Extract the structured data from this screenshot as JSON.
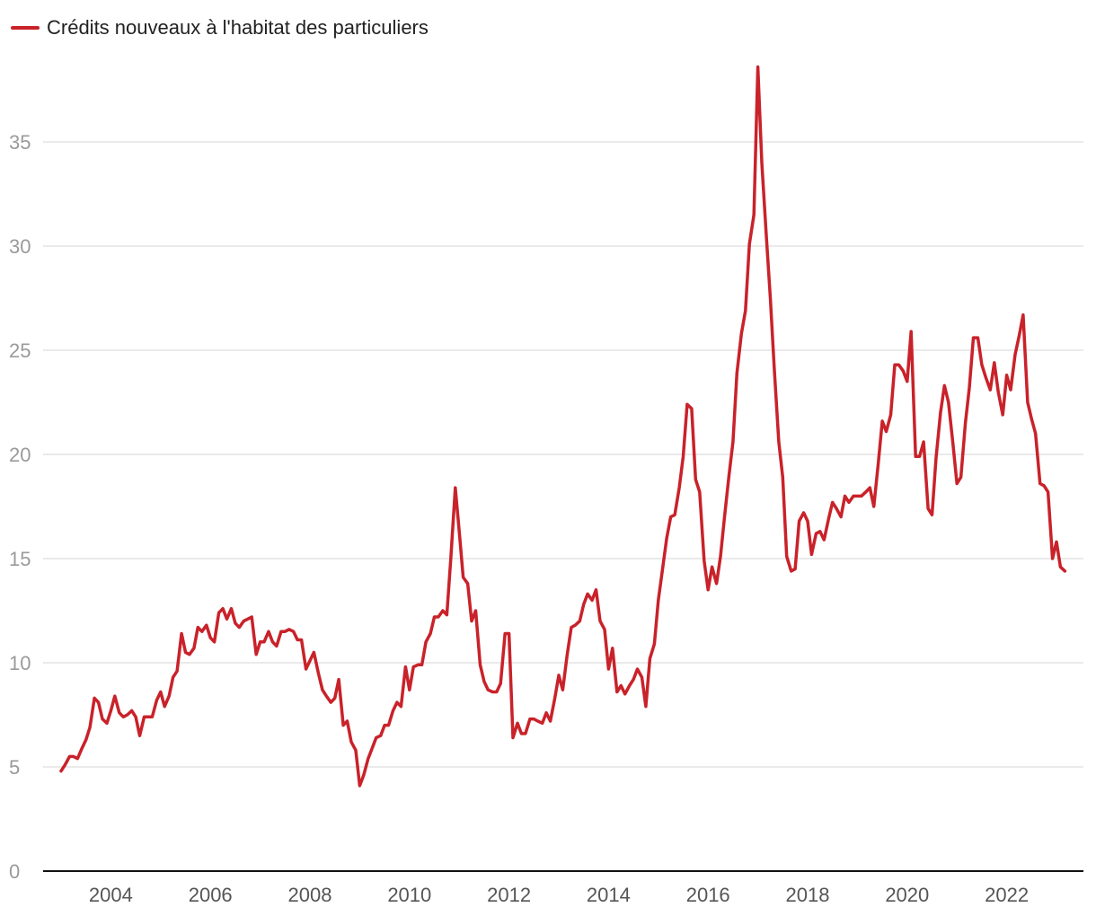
{
  "chart_data": {
    "type": "line",
    "title": "",
    "xlabel": "",
    "ylabel": "",
    "xlim": [
      2002.9,
      2023.3
    ],
    "ylim": [
      0,
      38
    ],
    "yticks": [
      0,
      5,
      10,
      15,
      20,
      25,
      30,
      35
    ],
    "xticks": [
      2004,
      2006,
      2008,
      2010,
      2012,
      2014,
      2016,
      2018,
      2020,
      2022
    ],
    "grid": true,
    "legend_position": "top-left",
    "colors": {
      "series": "#c9222a",
      "grid": "#e3e3e3",
      "axis": "#111111"
    },
    "series": [
      {
        "name": "Crédits nouveaux à l'habitat des particuliers",
        "points": [
          [
            2003.0,
            4.8
          ],
          [
            2003.08,
            5.1
          ],
          [
            2003.17,
            5.5
          ],
          [
            2003.25,
            5.5
          ],
          [
            2003.33,
            5.4
          ],
          [
            2003.42,
            5.9
          ],
          [
            2003.5,
            6.3
          ],
          [
            2003.58,
            6.9
          ],
          [
            2003.67,
            8.3
          ],
          [
            2003.75,
            8.1
          ],
          [
            2003.83,
            7.3
          ],
          [
            2003.92,
            7.1
          ],
          [
            2004.0,
            7.7
          ],
          [
            2004.08,
            8.4
          ],
          [
            2004.17,
            7.6
          ],
          [
            2004.25,
            7.4
          ],
          [
            2004.33,
            7.5
          ],
          [
            2004.42,
            7.7
          ],
          [
            2004.5,
            7.4
          ],
          [
            2004.58,
            6.5
          ],
          [
            2004.67,
            7.4
          ],
          [
            2004.75,
            7.4
          ],
          [
            2004.83,
            7.4
          ],
          [
            2004.92,
            8.2
          ],
          [
            2005.0,
            8.6
          ],
          [
            2005.08,
            7.9
          ],
          [
            2005.17,
            8.4
          ],
          [
            2005.25,
            9.3
          ],
          [
            2005.33,
            9.6
          ],
          [
            2005.42,
            11.4
          ],
          [
            2005.5,
            10.5
          ],
          [
            2005.58,
            10.4
          ],
          [
            2005.67,
            10.7
          ],
          [
            2005.75,
            11.7
          ],
          [
            2005.83,
            11.5
          ],
          [
            2005.92,
            11.8
          ],
          [
            2006.0,
            11.2
          ],
          [
            2006.08,
            11.0
          ],
          [
            2006.17,
            12.4
          ],
          [
            2006.25,
            12.6
          ],
          [
            2006.33,
            12.1
          ],
          [
            2006.42,
            12.6
          ],
          [
            2006.5,
            11.9
          ],
          [
            2006.58,
            11.7
          ],
          [
            2006.67,
            12.0
          ],
          [
            2006.75,
            12.1
          ],
          [
            2006.83,
            12.2
          ],
          [
            2006.92,
            10.4
          ],
          [
            2007.0,
            11.0
          ],
          [
            2007.08,
            11.0
          ],
          [
            2007.17,
            11.5
          ],
          [
            2007.25,
            11.0
          ],
          [
            2007.33,
            10.8
          ],
          [
            2007.42,
            11.5
          ],
          [
            2007.5,
            11.5
          ],
          [
            2007.58,
            11.6
          ],
          [
            2007.67,
            11.5
          ],
          [
            2007.75,
            11.1
          ],
          [
            2007.83,
            11.1
          ],
          [
            2007.92,
            9.7
          ],
          [
            2008.0,
            10.1
          ],
          [
            2008.08,
            10.5
          ],
          [
            2008.17,
            9.5
          ],
          [
            2008.25,
            8.7
          ],
          [
            2008.33,
            8.4
          ],
          [
            2008.42,
            8.1
          ],
          [
            2008.5,
            8.3
          ],
          [
            2008.58,
            9.2
          ],
          [
            2008.67,
            7.0
          ],
          [
            2008.75,
            7.2
          ],
          [
            2008.83,
            6.2
          ],
          [
            2008.92,
            5.8
          ],
          [
            2009.0,
            4.1
          ],
          [
            2009.08,
            4.6
          ],
          [
            2009.17,
            5.4
          ],
          [
            2009.25,
            5.9
          ],
          [
            2009.33,
            6.4
          ],
          [
            2009.42,
            6.5
          ],
          [
            2009.5,
            7.0
          ],
          [
            2009.58,
            7.0
          ],
          [
            2009.67,
            7.7
          ],
          [
            2009.75,
            8.1
          ],
          [
            2009.83,
            7.9
          ],
          [
            2009.92,
            9.8
          ],
          [
            2010.0,
            8.7
          ],
          [
            2010.08,
            9.8
          ],
          [
            2010.17,
            9.9
          ],
          [
            2010.25,
            9.9
          ],
          [
            2010.33,
            11.0
          ],
          [
            2010.42,
            11.4
          ],
          [
            2010.5,
            12.2
          ],
          [
            2010.58,
            12.2
          ],
          [
            2010.67,
            12.5
          ],
          [
            2010.75,
            12.3
          ],
          [
            2010.83,
            15.0
          ],
          [
            2010.92,
            18.4
          ],
          [
            2011.0,
            16.3
          ],
          [
            2011.08,
            14.1
          ],
          [
            2011.17,
            13.8
          ],
          [
            2011.25,
            12.0
          ],
          [
            2011.33,
            12.5
          ],
          [
            2011.42,
            9.9
          ],
          [
            2011.5,
            9.1
          ],
          [
            2011.58,
            8.7
          ],
          [
            2011.67,
            8.6
          ],
          [
            2011.75,
            8.6
          ],
          [
            2011.83,
            9.0
          ],
          [
            2011.92,
            11.4
          ],
          [
            2012.0,
            11.4
          ],
          [
            2012.08,
            6.4
          ],
          [
            2012.17,
            7.1
          ],
          [
            2012.25,
            6.6
          ],
          [
            2012.33,
            6.6
          ],
          [
            2012.42,
            7.3
          ],
          [
            2012.5,
            7.3
          ],
          [
            2012.58,
            7.2
          ],
          [
            2012.67,
            7.1
          ],
          [
            2012.75,
            7.6
          ],
          [
            2012.83,
            7.2
          ],
          [
            2012.92,
            8.3
          ],
          [
            2013.0,
            9.4
          ],
          [
            2013.08,
            8.7
          ],
          [
            2013.17,
            10.4
          ],
          [
            2013.25,
            11.7
          ],
          [
            2013.33,
            11.8
          ],
          [
            2013.42,
            12.0
          ],
          [
            2013.5,
            12.8
          ],
          [
            2013.58,
            13.3
          ],
          [
            2013.67,
            13.0
          ],
          [
            2013.75,
            13.5
          ],
          [
            2013.83,
            12.0
          ],
          [
            2013.92,
            11.6
          ],
          [
            2014.0,
            9.7
          ],
          [
            2014.08,
            10.7
          ],
          [
            2014.17,
            8.6
          ],
          [
            2014.25,
            8.9
          ],
          [
            2014.33,
            8.5
          ],
          [
            2014.42,
            8.9
          ],
          [
            2014.5,
            9.2
          ],
          [
            2014.58,
            9.7
          ],
          [
            2014.67,
            9.3
          ],
          [
            2014.75,
            7.9
          ],
          [
            2014.83,
            10.2
          ],
          [
            2014.92,
            10.9
          ],
          [
            2015.0,
            13.0
          ],
          [
            2015.08,
            14.4
          ],
          [
            2015.17,
            16.0
          ],
          [
            2015.25,
            17.0
          ],
          [
            2015.33,
            17.1
          ],
          [
            2015.42,
            18.4
          ],
          [
            2015.5,
            19.9
          ],
          [
            2015.58,
            22.4
          ],
          [
            2015.67,
            22.2
          ],
          [
            2015.75,
            18.8
          ],
          [
            2015.83,
            18.2
          ],
          [
            2015.92,
            14.9
          ],
          [
            2016.0,
            13.5
          ],
          [
            2016.08,
            14.6
          ],
          [
            2016.17,
            13.8
          ],
          [
            2016.25,
            15.1
          ],
          [
            2016.33,
            17.0
          ],
          [
            2016.42,
            19.0
          ],
          [
            2016.5,
            20.6
          ],
          [
            2016.58,
            23.9
          ],
          [
            2016.67,
            25.8
          ],
          [
            2016.75,
            26.9
          ],
          [
            2016.83,
            30.1
          ],
          [
            2016.92,
            31.5
          ],
          [
            2017.0,
            38.6
          ],
          [
            2017.08,
            34.0
          ],
          [
            2017.17,
            30.5
          ],
          [
            2017.25,
            27.5
          ],
          [
            2017.33,
            24.1
          ],
          [
            2017.42,
            20.6
          ],
          [
            2017.5,
            18.9
          ],
          [
            2017.58,
            15.1
          ],
          [
            2017.67,
            14.4
          ],
          [
            2017.75,
            14.5
          ],
          [
            2017.83,
            16.8
          ],
          [
            2017.92,
            17.2
          ],
          [
            2018.0,
            16.8
          ],
          [
            2018.08,
            15.2
          ],
          [
            2018.17,
            16.2
          ],
          [
            2018.25,
            16.3
          ],
          [
            2018.33,
            15.9
          ],
          [
            2018.42,
            16.9
          ],
          [
            2018.5,
            17.7
          ],
          [
            2018.58,
            17.4
          ],
          [
            2018.67,
            17.0
          ],
          [
            2018.75,
            18.0
          ],
          [
            2018.83,
            17.7
          ],
          [
            2018.92,
            18.0
          ],
          [
            2019.0,
            18.0
          ],
          [
            2019.08,
            18.0
          ],
          [
            2019.17,
            18.2
          ],
          [
            2019.25,
            18.4
          ],
          [
            2019.33,
            17.5
          ],
          [
            2019.42,
            19.6
          ],
          [
            2019.5,
            21.6
          ],
          [
            2019.58,
            21.1
          ],
          [
            2019.67,
            21.9
          ],
          [
            2019.75,
            24.3
          ],
          [
            2019.83,
            24.3
          ],
          [
            2019.92,
            24.0
          ],
          [
            2020.0,
            23.5
          ],
          [
            2020.08,
            25.9
          ],
          [
            2020.17,
            19.9
          ],
          [
            2020.25,
            19.9
          ],
          [
            2020.33,
            20.6
          ],
          [
            2020.42,
            17.4
          ],
          [
            2020.5,
            17.1
          ],
          [
            2020.58,
            19.8
          ],
          [
            2020.67,
            22.0
          ],
          [
            2020.75,
            23.3
          ],
          [
            2020.83,
            22.5
          ],
          [
            2020.92,
            20.5
          ],
          [
            2021.0,
            18.6
          ],
          [
            2021.08,
            18.9
          ],
          [
            2021.17,
            21.5
          ],
          [
            2021.25,
            23.2
          ],
          [
            2021.33,
            25.6
          ],
          [
            2021.42,
            25.6
          ],
          [
            2021.5,
            24.3
          ],
          [
            2021.58,
            23.7
          ],
          [
            2021.67,
            23.1
          ],
          [
            2021.75,
            24.4
          ],
          [
            2021.83,
            23.0
          ],
          [
            2021.92,
            21.9
          ],
          [
            2022.0,
            23.8
          ],
          [
            2022.08,
            23.1
          ],
          [
            2022.17,
            24.8
          ],
          [
            2022.25,
            25.7
          ],
          [
            2022.33,
            26.7
          ],
          [
            2022.42,
            22.5
          ],
          [
            2022.5,
            21.7
          ],
          [
            2022.58,
            21.0
          ],
          [
            2022.67,
            18.6
          ],
          [
            2022.75,
            18.5
          ],
          [
            2022.83,
            18.2
          ],
          [
            2022.92,
            15.0
          ],
          [
            2023.0,
            15.8
          ],
          [
            2023.08,
            14.6
          ],
          [
            2023.17,
            14.4
          ]
        ]
      }
    ]
  }
}
